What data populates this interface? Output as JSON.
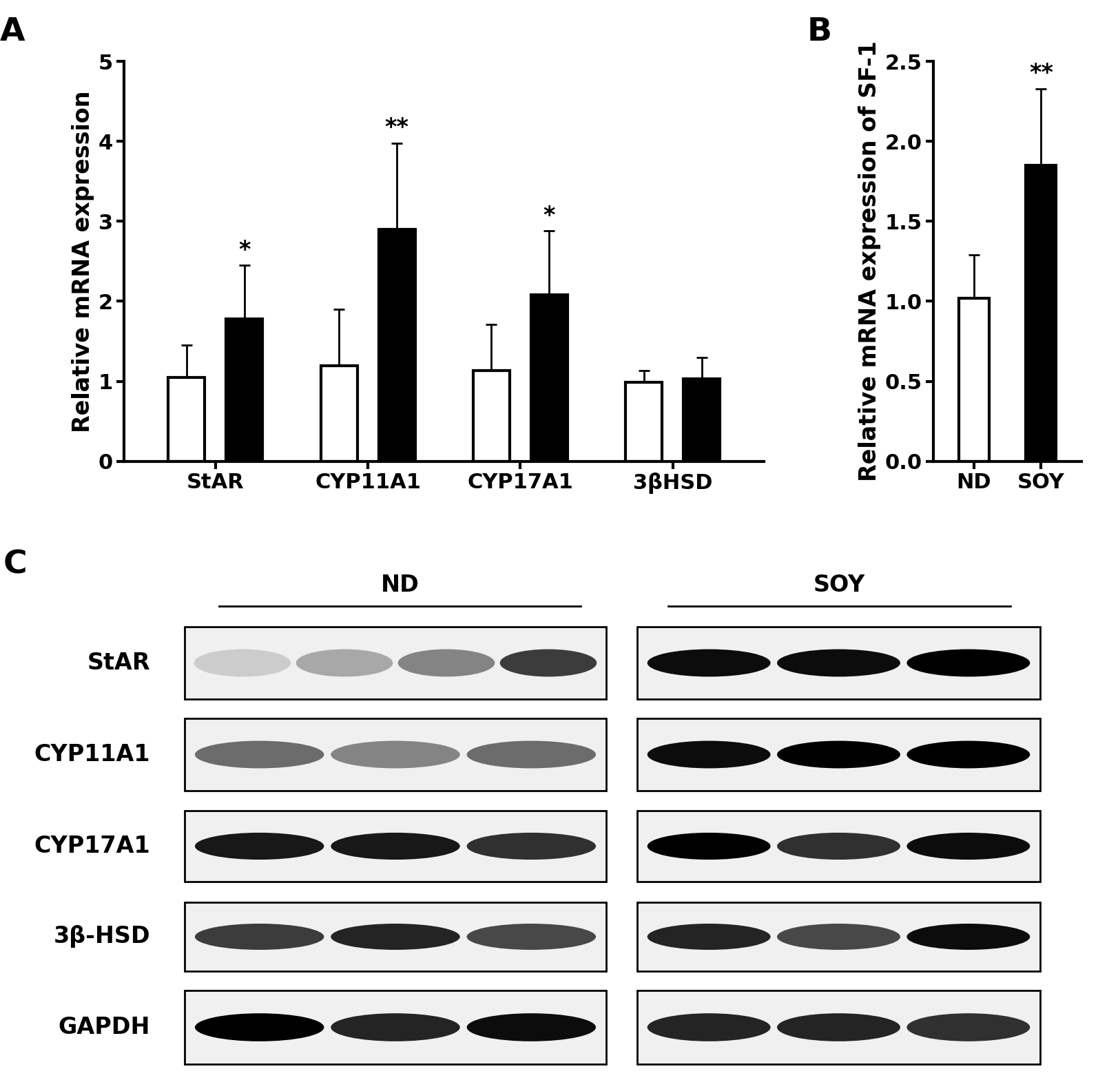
{
  "panel_labels": [
    "A",
    "B",
    "C"
  ],
  "chart_data": [
    {
      "type": "bar",
      "y_label": "Relative mRNA expression",
      "categories": [
        "StAR",
        "CYP11A1",
        "CYP17A1",
        "3βHSD"
      ],
      "series": [
        {
          "color": "#ffffff",
          "values": [
            1.05,
            1.19,
            1.13,
            0.99
          ],
          "error": [
            0.4,
            0.71,
            0.58,
            0.14
          ]
        },
        {
          "color": "#000000",
          "values": [
            1.78,
            2.9,
            2.08,
            1.03
          ],
          "error": [
            0.67,
            1.08,
            0.8,
            0.27
          ],
          "annotations": [
            "*",
            "**",
            "*",
            null
          ]
        }
      ],
      "ylim": [
        0,
        5
      ],
      "yticks": [
        0,
        1,
        2,
        3,
        4,
        5
      ],
      "grid": false
    },
    {
      "type": "bar",
      "y_label": "Relative mRNA expression of SF-1",
      "categories": [
        "ND",
        "SOY"
      ],
      "values": [
        1.02,
        1.85
      ],
      "error": [
        0.27,
        0.48
      ],
      "colors": [
        "#ffffff",
        "#000000"
      ],
      "annotations": [
        null,
        "**"
      ],
      "ylim": [
        0,
        2.5
      ],
      "yticks": [
        {
          "value": 0,
          "label": "0.0"
        },
        {
          "value": 0.5,
          "label": "0.5"
        },
        {
          "value": 1,
          "label": "1.0"
        },
        {
          "value": 1.5,
          "label": "1.5"
        },
        {
          "value": 2,
          "label": "2.0"
        },
        {
          "value": 2.5,
          "label": "2.5"
        }
      ],
      "grid": false
    }
  ],
  "blot": {
    "groups": [
      "ND",
      "SOY"
    ],
    "rows": [
      {
        "label": "StAR",
        "bands": [
          [
            0.15,
            0.3,
            0.45,
            0.75
          ],
          [
            0.95,
            0.95,
            1.0
          ]
        ]
      },
      {
        "label": "CYP11A1",
        "bands": [
          [
            0.55,
            0.45,
            0.55
          ],
          [
            0.95,
            1.0,
            1.0
          ]
        ]
      },
      {
        "label": "CYP17A1",
        "bands": [
          [
            0.9,
            0.9,
            0.8
          ],
          [
            1.0,
            0.8,
            0.95
          ]
        ]
      },
      {
        "label": "3β-HSD",
        "bands": [
          [
            0.75,
            0.85,
            0.7
          ],
          [
            0.85,
            0.7,
            0.95
          ]
        ]
      },
      {
        "label": "GAPDH",
        "bands": [
          [
            1.0,
            0.85,
            0.95
          ],
          [
            0.85,
            0.85,
            0.8
          ]
        ]
      }
    ]
  }
}
